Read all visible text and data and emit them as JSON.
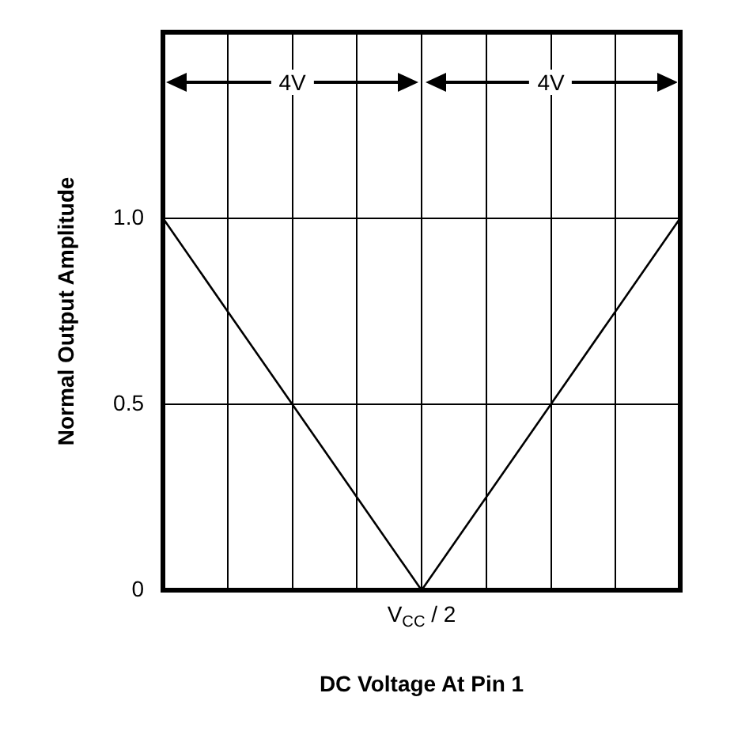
{
  "chart_data": {
    "type": "line",
    "xlabel": "DC Voltage At Pin 1",
    "ylabel": "Normal Output Amplitude",
    "categories": [
      null,
      null,
      null,
      null,
      "V$_{CC}$ / 2",
      null,
      null,
      null,
      null
    ],
    "series": [
      {
        "color": "#000000",
        "values": [
          1,
          0.75,
          0.5,
          0.25,
          0,
          0.25,
          0.5,
          0.75,
          1
        ]
      }
    ],
    "ylim": [
      0,
      1.5
    ],
    "yticks": [
      {
        "value": 0,
        "label": "0"
      },
      {
        "value": 0.5,
        "label": "0.5"
      },
      {
        "value": 1,
        "label": "1.0"
      }
    ],
    "annotations": [
      "4V",
      "4V"
    ],
    "grid": true,
    "legend": false,
    "marker": "none",
    "line_style": "solid"
  }
}
